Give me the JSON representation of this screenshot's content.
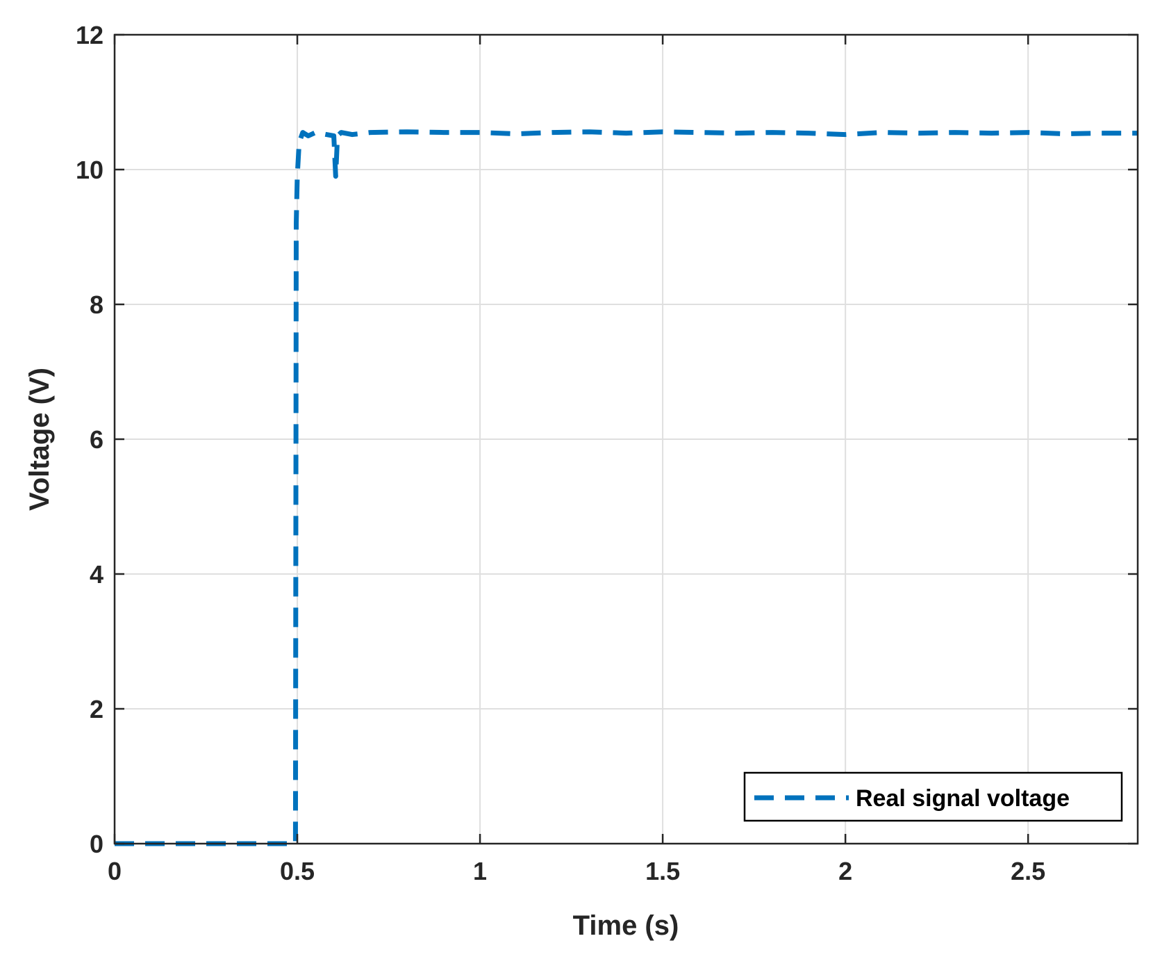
{
  "chart_data": {
    "type": "line",
    "xlabel": "Time (s)",
    "ylabel": "Voltage (V)",
    "xlim": [
      0,
      2.8
    ],
    "ylim": [
      0,
      12
    ],
    "x_ticks": [
      0,
      0.5,
      1,
      1.5,
      2,
      2.5
    ],
    "x_tick_labels": [
      "0",
      "0.5",
      "1",
      "1.5",
      "2",
      "2.5"
    ],
    "y_ticks": [
      0,
      2,
      4,
      6,
      8,
      10,
      12
    ],
    "y_tick_labels": [
      "0",
      "2",
      "4",
      "6",
      "8",
      "10",
      "12"
    ],
    "grid": true,
    "legend_position": "bottom-right",
    "series": [
      {
        "name": "Real signal voltage",
        "color": "#0072BD",
        "line_style": "dashed",
        "x": [
          0,
          0.49,
          0.495,
          0.497,
          0.5,
          0.505,
          0.515,
          0.53,
          0.55,
          0.58,
          0.6,
          0.605,
          0.61,
          0.62,
          0.65,
          0.7,
          0.8,
          0.9,
          1.0,
          1.1,
          1.2,
          1.3,
          1.4,
          1.5,
          1.6,
          1.7,
          1.8,
          1.9,
          2.0,
          2.1,
          2.2,
          2.3,
          2.4,
          2.5,
          2.6,
          2.7,
          2.8
        ],
        "y": [
          0,
          0,
          0,
          9.2,
          9.9,
          10.4,
          10.55,
          10.5,
          10.55,
          10.52,
          10.5,
          9.9,
          10.5,
          10.55,
          10.52,
          10.55,
          10.56,
          10.55,
          10.55,
          10.53,
          10.55,
          10.56,
          10.54,
          10.56,
          10.55,
          10.54,
          10.55,
          10.54,
          10.52,
          10.55,
          10.54,
          10.55,
          10.54,
          10.55,
          10.53,
          10.54,
          10.54
        ]
      }
    ]
  }
}
